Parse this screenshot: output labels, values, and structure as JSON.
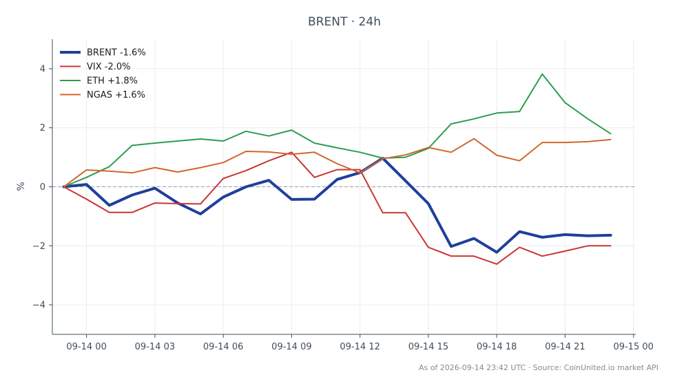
{
  "chart_data": {
    "type": "line",
    "title": "BRENT · 24h",
    "xlabel": "",
    "ylabel": "%",
    "ylim": [
      -5,
      5
    ],
    "yticks": [
      4,
      2,
      0,
      -2,
      -4
    ],
    "ytick_labels": [
      "4",
      "2",
      "0",
      "−2",
      "−4"
    ],
    "xlim": [
      -1.5,
      24.1
    ],
    "xticks": [
      0,
      3,
      6,
      9,
      12,
      15,
      18,
      21,
      24
    ],
    "xtick_labels": [
      "09-14 00",
      "09-14 03",
      "09-14 06",
      "09-14 09",
      "09-14 12",
      "09-14 15",
      "09-14 18",
      "09-14 21",
      "09-15 00"
    ],
    "x": [
      -1,
      0,
      1,
      2,
      3,
      4,
      5,
      6,
      7,
      8,
      9,
      10,
      11,
      12,
      13,
      14,
      15,
      16,
      17,
      18,
      19,
      20,
      21,
      22,
      23
    ],
    "grid": true,
    "zero_line": true,
    "legend_position": "top-left",
    "series": [
      {
        "name": "BRENT -1.6%",
        "color": "#1f3f9a",
        "width": 4,
        "values": [
          0,
          0.08,
          -0.63,
          -0.28,
          -0.05,
          -0.55,
          -0.92,
          -0.35,
          0.0,
          0.22,
          -0.43,
          -0.42,
          0.25,
          0.48,
          0.97,
          0.2,
          -0.57,
          -2.02,
          -1.75,
          -2.22,
          -1.52,
          -1.71,
          -1.62,
          -1.66,
          -1.64
        ]
      },
      {
        "name": "VIX -2.0%",
        "color": "#c93434",
        "width": 2,
        "values": [
          0,
          -0.42,
          -0.87,
          -0.87,
          -0.55,
          -0.57,
          -0.58,
          0.28,
          0.55,
          0.88,
          1.17,
          0.32,
          0.58,
          0.58,
          -0.88,
          -0.88,
          -2.05,
          -2.35,
          -2.35,
          -2.62,
          -2.05,
          -2.35,
          -2.18,
          -2.0,
          -2.0
        ]
      },
      {
        "name": "ETH +1.8%",
        "color": "#2a9d4f",
        "width": 2,
        "values": [
          0,
          0.32,
          0.68,
          1.4,
          1.48,
          1.55,
          1.62,
          1.55,
          1.88,
          1.72,
          1.92,
          1.48,
          1.32,
          1.17,
          0.97,
          1.0,
          1.3,
          2.13,
          2.3,
          2.5,
          2.55,
          3.82,
          2.85,
          2.3,
          1.8
        ]
      },
      {
        "name": "NGAS +1.6%",
        "color": "#d2652a",
        "width": 2,
        "values": [
          0,
          0.57,
          0.53,
          0.47,
          0.65,
          0.5,
          0.65,
          0.82,
          1.2,
          1.18,
          1.1,
          1.17,
          0.78,
          0.47,
          0.95,
          1.08,
          1.33,
          1.17,
          1.63,
          1.07,
          0.88,
          1.5,
          1.5,
          1.53,
          1.6
        ]
      }
    ],
    "footer": "As of 2026-09-14 23:42 UTC · Source: CoinUnited.io market API"
  }
}
